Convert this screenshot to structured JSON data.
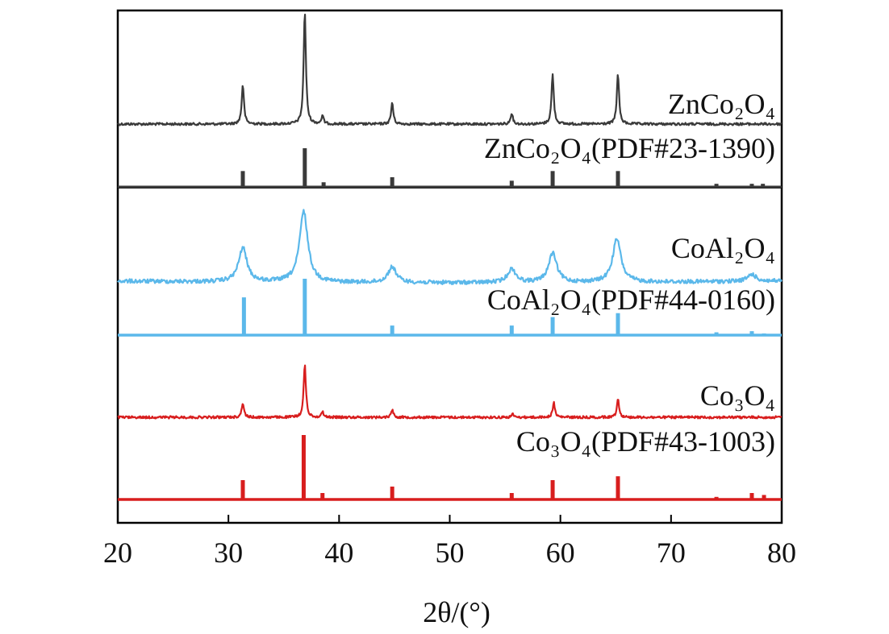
{
  "chart_data": {
    "type": "line",
    "xlabel": "2θ/(°)",
    "xlim": [
      20,
      80
    ],
    "x_ticks": [
      "20",
      "30",
      "40",
      "50",
      "60",
      "70",
      "80"
    ],
    "ylabel": "",
    "grid": false,
    "series": [
      {
        "name": "ZnCo₂O₄",
        "kind": "pattern",
        "color": "#3a3a3a",
        "peaks": [
          {
            "x": 31.3,
            "y": 0.35
          },
          {
            "x": 36.9,
            "y": 1.0
          },
          {
            "x": 38.5,
            "y": 0.07
          },
          {
            "x": 44.8,
            "y": 0.19
          },
          {
            "x": 55.6,
            "y": 0.1
          },
          {
            "x": 59.3,
            "y": 0.44
          },
          {
            "x": 65.2,
            "y": 0.45
          }
        ]
      },
      {
        "name": "ZnCo₂O₄(PDF#23-1390)",
        "kind": "reference",
        "color": "#3a3a3a",
        "peaks": [
          {
            "x": 31.3,
            "y": 0.41
          },
          {
            "x": 36.9,
            "y": 1.0
          },
          {
            "x": 38.6,
            "y": 0.12
          },
          {
            "x": 44.8,
            "y": 0.25
          },
          {
            "x": 55.6,
            "y": 0.16
          },
          {
            "x": 59.3,
            "y": 0.41
          },
          {
            "x": 65.2,
            "y": 0.41
          },
          {
            "x": 74.1,
            "y": 0.08
          },
          {
            "x": 77.3,
            "y": 0.08
          },
          {
            "x": 78.3,
            "y": 0.08
          }
        ]
      },
      {
        "name": "CoAl₂O₄",
        "kind": "pattern",
        "color": "#5bb8ea",
        "peaks": [
          {
            "x": 31.3,
            "y": 0.48
          },
          {
            "x": 36.8,
            "y": 1.0
          },
          {
            "x": 44.8,
            "y": 0.22
          },
          {
            "x": 55.6,
            "y": 0.19
          },
          {
            "x": 59.3,
            "y": 0.41
          },
          {
            "x": 65.1,
            "y": 0.61
          },
          {
            "x": 77.3,
            "y": 0.1
          }
        ]
      },
      {
        "name": "CoAl₂O₄(PDF#44-0160)",
        "kind": "reference",
        "color": "#5bb8ea",
        "peaks": [
          {
            "x": 31.4,
            "y": 0.67
          },
          {
            "x": 36.9,
            "y": 1.0
          },
          {
            "x": 44.8,
            "y": 0.17
          },
          {
            "x": 55.6,
            "y": 0.17
          },
          {
            "x": 59.3,
            "y": 0.32
          },
          {
            "x": 65.2,
            "y": 0.39
          },
          {
            "x": 74.1,
            "y": 0.05
          },
          {
            "x": 77.3,
            "y": 0.07
          },
          {
            "x": 78.4,
            "y": 0.03
          }
        ]
      },
      {
        "name": "Co₃O₄",
        "kind": "pattern",
        "color": "#d81e1e",
        "peaks": [
          {
            "x": 31.3,
            "y": 0.28
          },
          {
            "x": 36.9,
            "y": 1.0
          },
          {
            "x": 38.5,
            "y": 0.1
          },
          {
            "x": 44.8,
            "y": 0.15
          },
          {
            "x": 55.7,
            "y": 0.06
          },
          {
            "x": 59.4,
            "y": 0.28
          },
          {
            "x": 65.2,
            "y": 0.36
          }
        ]
      },
      {
        "name": "Co₃O₄(PDF#43-1003)",
        "kind": "reference",
        "color": "#d81e1e",
        "peaks": [
          {
            "x": 31.3,
            "y": 0.3
          },
          {
            "x": 36.8,
            "y": 1.0
          },
          {
            "x": 38.5,
            "y": 0.1
          },
          {
            "x": 44.8,
            "y": 0.2
          },
          {
            "x": 55.6,
            "y": 0.1
          },
          {
            "x": 59.3,
            "y": 0.3
          },
          {
            "x": 65.2,
            "y": 0.36
          },
          {
            "x": 74.1,
            "y": 0.04
          },
          {
            "x": 77.3,
            "y": 0.1
          },
          {
            "x": 78.4,
            "y": 0.07
          }
        ]
      }
    ]
  }
}
